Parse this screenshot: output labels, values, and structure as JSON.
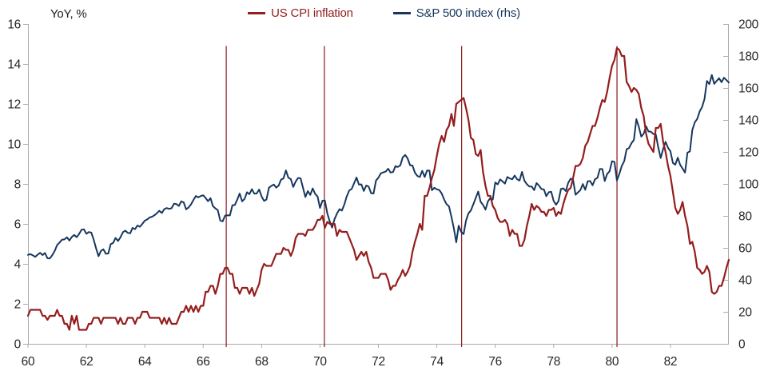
{
  "legend": [
    {
      "label": "US CPI inflation",
      "color": "#941D1D"
    },
    {
      "label": "S&P 500 index (rhs)",
      "color": "#17375E"
    }
  ],
  "chart_data": {
    "type": "line",
    "title": "",
    "left_axis": {
      "title": "YoY, %",
      "min": 0,
      "max": 16,
      "ticks": [
        0,
        2,
        4,
        6,
        8,
        10,
        12,
        14,
        16
      ]
    },
    "right_axis": {
      "title": "",
      "min": 0,
      "max": 200,
      "ticks": [
        0,
        20,
        40,
        60,
        80,
        100,
        120,
        140,
        160,
        180,
        200
      ]
    },
    "x_axis": {
      "ticks": [
        60,
        62,
        64,
        66,
        68,
        70,
        72,
        74,
        76,
        78,
        80,
        82
      ]
    },
    "x_domain": [
      1960,
      1984
    ],
    "x_start_year": 1960,
    "x_points_per_year": 12,
    "grid": false,
    "axis_color": "#ABABAB",
    "tick_text_color": "#262626",
    "event_lines": {
      "color": "#8B1A1A",
      "top_value": 14.9,
      "years": [
        1966.79,
        1970.15,
        1974.85,
        1980.17
      ]
    },
    "series": [
      {
        "name": "US CPI inflation",
        "axis": "left",
        "color": "#941D1D",
        "values": [
          1.4,
          1.7,
          1.7,
          1.7,
          1.7,
          1.7,
          1.4,
          1.4,
          1.2,
          1.4,
          1.4,
          1.4,
          1.7,
          1.4,
          1.4,
          1.0,
          1.0,
          0.7,
          1.4,
          1.0,
          1.4,
          0.7,
          0.7,
          0.7,
          0.7,
          1.0,
          1.0,
          1.3,
          1.3,
          1.3,
          1.0,
          1.3,
          1.3,
          1.3,
          1.3,
          1.3,
          1.3,
          1.0,
          1.3,
          1.0,
          1.0,
          1.3,
          1.3,
          1.3,
          1.0,
          1.3,
          1.3,
          1.6,
          1.6,
          1.6,
          1.3,
          1.3,
          1.3,
          1.3,
          1.3,
          1.0,
          1.3,
          1.0,
          1.3,
          1.0,
          1.0,
          1.0,
          1.3,
          1.6,
          1.6,
          1.9,
          1.6,
          1.9,
          1.6,
          1.9,
          1.6,
          1.9,
          1.9,
          2.6,
          2.6,
          2.9,
          2.9,
          2.5,
          2.9,
          3.5,
          3.5,
          3.8,
          3.8,
          3.5,
          3.5,
          2.8,
          2.8,
          2.5,
          2.8,
          2.8,
          2.8,
          2.5,
          2.8,
          2.4,
          2.7,
          3.0,
          3.7,
          4.0,
          3.9,
          3.9,
          3.9,
          4.2,
          4.5,
          4.5,
          4.5,
          4.8,
          4.7,
          4.7,
          4.4,
          4.7,
          5.3,
          5.5,
          5.5,
          5.5,
          5.4,
          5.7,
          5.7,
          5.7,
          5.9,
          6.2,
          6.2,
          6.4,
          5.8,
          6.1,
          6.0,
          6.0,
          6.0,
          5.4,
          5.7,
          5.6,
          5.6,
          5.6,
          5.3,
          5.0,
          4.7,
          4.2,
          4.4,
          4.6,
          4.4,
          4.6,
          4.1,
          3.8,
          3.3,
          3.3,
          3.3,
          3.5,
          3.5,
          3.5,
          3.2,
          2.7,
          2.9,
          2.9,
          3.2,
          3.4,
          3.7,
          3.4,
          3.6,
          3.9,
          4.6,
          5.1,
          5.5,
          6.0,
          5.7,
          7.4,
          7.4,
          7.8,
          8.3,
          8.7,
          9.4,
          10.0,
          10.4,
          10.1,
          10.7,
          10.9,
          11.5,
          10.9,
          12.0,
          12.1,
          12.2,
          12.3,
          11.8,
          11.2,
          10.3,
          10.2,
          9.5,
          9.4,
          9.7,
          8.6,
          7.9,
          7.4,
          7.4,
          6.9,
          6.7,
          6.3,
          6.1,
          6.1,
          6.2,
          6.0,
          5.4,
          5.7,
          5.5,
          5.5,
          4.9,
          4.9,
          5.2,
          5.9,
          6.4,
          7.0,
          6.7,
          6.9,
          6.8,
          6.6,
          6.6,
          6.4,
          6.7,
          6.7,
          6.8,
          6.4,
          6.6,
          6.5,
          7.0,
          7.4,
          7.7,
          7.8,
          8.3,
          8.9,
          8.9,
          9.0,
          9.3,
          9.9,
          10.1,
          10.5,
          10.9,
          10.9,
          11.3,
          11.8,
          12.2,
          12.1,
          12.6,
          13.3,
          13.9,
          14.2,
          14.8,
          14.7,
          14.4,
          14.4,
          13.1,
          12.9,
          12.6,
          12.8,
          12.7,
          12.5,
          11.8,
          11.4,
          10.5,
          10.0,
          9.8,
          9.6,
          10.8,
          10.8,
          11.0,
          10.1,
          9.6,
          8.9,
          8.4,
          7.6,
          6.8,
          6.5,
          6.7,
          7.1,
          6.4,
          5.9,
          5.0,
          5.1,
          4.6,
          3.8,
          3.7,
          3.5,
          3.6,
          3.9,
          3.6,
          2.6,
          2.5,
          2.6,
          2.9,
          2.9,
          3.3,
          3.8,
          4.2
        ]
      },
      {
        "name": "S&P 500 index (rhs)",
        "axis": "right",
        "color": "#17375E",
        "values": [
          55.6,
          56.1,
          55.3,
          54.4,
          55.8,
          56.9,
          55.5,
          56.8,
          53.5,
          53.4,
          55.5,
          58.1,
          61.8,
          63.4,
          65.1,
          65.3,
          66.6,
          64.6,
          66.8,
          68.1,
          66.7,
          68.6,
          71.3,
          71.6,
          68.8,
          69.9,
          69.6,
          65.2,
          59.6,
          54.8,
          58.2,
          59.1,
          56.3,
          56.5,
          62.3,
          63.1,
          66.2,
          64.3,
          66.6,
          69.8,
          70.8,
          69.4,
          69.1,
          72.5,
          71.7,
          74.0,
          73.2,
          75.0,
          77.0,
          77.8,
          79.0,
          79.5,
          80.4,
          81.7,
          83.2,
          81.8,
          84.2,
          84.9,
          84.4,
          84.8,
          87.6,
          87.4,
          86.2,
          89.1,
          88.4,
          84.1,
          85.3,
          87.2,
          90.0,
          92.4,
          91.6,
          92.4,
          92.9,
          91.2,
          89.2,
          91.1,
          86.1,
          84.7,
          83.6,
          77.1,
          76.6,
          80.2,
          80.4,
          80.3,
          86.6,
          86.8,
          90.2,
          94.0,
          89.1,
          90.6,
          94.8,
          93.6,
          96.7,
          93.9,
          94.0,
          96.5,
          92.2,
          89.4,
          90.2,
          97.6,
          98.7,
          99.6,
          97.7,
          98.9,
          102.7,
          103.4,
          108.4,
          103.9,
          103.0,
          98.1,
          101.5,
          103.7,
          103.5,
          97.7,
          91.8,
          95.5,
          93.1,
          97.2,
          93.8,
          92.1,
          85.0,
          89.5,
          89.6,
          81.5,
          76.6,
          72.7,
          78.1,
          81.5,
          84.2,
          83.3,
          87.2,
          92.2,
          95.9,
          96.8,
          100.3,
          104.0,
          99.6,
          99.7,
          95.6,
          99.0,
          98.3,
          94.2,
          94.0,
          102.1,
          103.9,
          106.6,
          107.2,
          107.7,
          109.5,
          107.1,
          107.4,
          111.1,
          110.6,
          111.6,
          116.7,
          118.1,
          116.0,
          111.7,
          111.5,
          107.0,
          105.0,
          104.3,
          108.2,
          104.3,
          108.4,
          108.3,
          96.0,
          97.6,
          96.6,
          96.2,
          94.0,
          90.3,
          87.3,
          86.0,
          79.3,
          72.2,
          63.5,
          73.9,
          70.0,
          68.6,
          77.0,
          81.6,
          83.4,
          87.3,
          91.2,
          95.2,
          88.8,
          86.9,
          83.9,
          89.0,
          91.2,
          90.2,
          100.9,
          99.7,
          102.8,
          101.6,
          100.2,
          104.3,
          103.4,
          102.9,
          105.2,
          102.9,
          102.1,
          107.5,
          102.0,
          99.8,
          98.4,
          98.4,
          96.1,
          100.5,
          98.9,
          96.8,
          96.5,
          92.3,
          94.8,
          95.1,
          89.3,
          87.0,
          89.2,
          96.8,
          97.2,
          95.5,
          100.7,
          103.3,
          102.5,
          93.2,
          94.7,
          96.1,
          99.9,
          96.3,
          101.6,
          101.8,
          99.1,
          102.9,
          103.8,
          109.3,
          109.3,
          101.8,
          106.2,
          107.9,
          114.2,
          113.7,
          102.1,
          106.3,
          111.2,
          114.2,
          121.7,
          122.4,
          125.5,
          127.5,
          140.5,
          135.8,
          129.6,
          131.3,
          136.0,
          132.8,
          132.6,
          131.2,
          130.9,
          122.8,
          116.2,
          121.9,
          126.3,
          122.6,
          120.4,
          113.1,
          112.0,
          116.4,
          111.9,
          109.6,
          107.1,
          119.5,
          120.4,
          133.7,
          138.5,
          140.6,
          145.3,
          148.1,
          153.0,
          164.4,
          162.4,
          168.1,
          162.6,
          164.4,
          166.1,
          163.6,
          166.4,
          164.9,
          163.4
        ]
      }
    ]
  }
}
